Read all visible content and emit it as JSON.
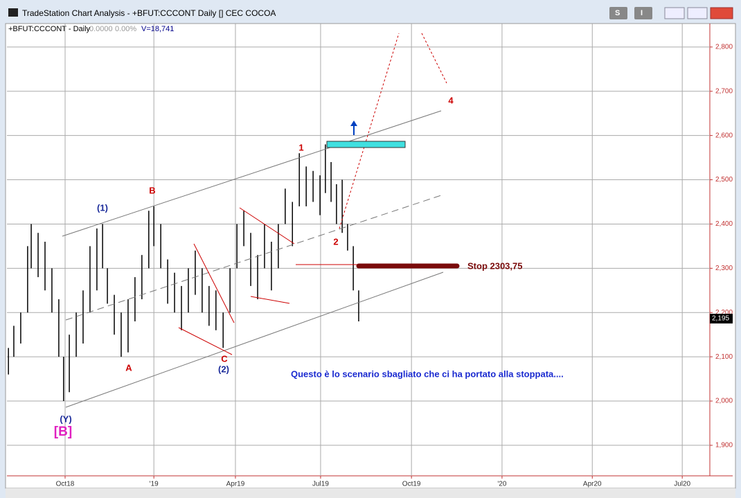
{
  "window": {
    "title": "TradeStation Chart Analysis - +BFUT:CCCONT Daily [] CEC COCOA",
    "buttons": [
      "S",
      "I"
    ]
  },
  "chart_data": {
    "type": "ohlc",
    "symbol": "+BFUT:CCCONT - Daily",
    "change": "0.0000",
    "change_pct": "0.00%",
    "volume": "V=18,741",
    "last_price_label": "2,195",
    "x": [
      -1.89,
      -1.71,
      -1.48,
      -1.25,
      -1.13,
      -0.9,
      -0.67,
      -0.44,
      -0.21,
      -0.05,
      0.14,
      0.37,
      0.6,
      0.83,
      1.06,
      1.25,
      1.41,
      1.64,
      1.87,
      2.1,
      2.33,
      2.56,
      2.79,
      2.96,
      3.19,
      3.42,
      3.65,
      3.88,
      4.11,
      4.34,
      4.57,
      4.8,
      5.03,
      5.27,
      5.5,
      5.73,
      5.96,
      6.19,
      6.42,
      6.65,
      6.88,
      7.11,
      7.34,
      7.58,
      7.81,
      8.04,
      8.27,
      8.5,
      8.68,
      8.87,
      9.05,
      9.24,
      9.42,
      9.61,
      9.79
    ],
    "high": [
      2120,
      2170,
      2200,
      2350,
      2400,
      2380,
      2360,
      2300,
      2230,
      2100,
      2150,
      2200,
      2250,
      2350,
      2390,
      2400,
      2300,
      2240,
      2200,
      2230,
      2280,
      2330,
      2430,
      2440,
      2400,
      2320,
      2290,
      2260,
      2300,
      2340,
      2300,
      2260,
      2250,
      2200,
      2300,
      2400,
      2430,
      2380,
      2330,
      2400,
      2360,
      2400,
      2480,
      2450,
      2560,
      2530,
      2520,
      2510,
      2580,
      2540,
      2490,
      2500,
      2400,
      2350,
      2250
    ],
    "low": [
      2060,
      2100,
      2130,
      2200,
      2300,
      2280,
      2250,
      2200,
      2100,
      2000,
      2020,
      2100,
      2130,
      2200,
      2250,
      2300,
      2220,
      2150,
      2100,
      2110,
      2180,
      2230,
      2300,
      2350,
      2300,
      2220,
      2200,
      2160,
      2200,
      2240,
      2200,
      2170,
      2160,
      2120,
      2200,
      2300,
      2350,
      2260,
      2230,
      2300,
      2250,
      2300,
      2400,
      2350,
      2440,
      2440,
      2450,
      2420,
      2470,
      2450,
      2400,
      2380,
      2340,
      2250,
      2180
    ],
    "color": "#000000",
    "xlim": [
      -1.94,
      21.5
    ],
    "ylim": [
      1831,
      2853
    ],
    "xticks": [
      {
        "value": 0,
        "label": "Oct18"
      },
      {
        "value": 2.96,
        "label": "'19"
      },
      {
        "value": 5.68,
        "label": "Apr19"
      },
      {
        "value": 8.52,
        "label": "Jul19"
      },
      {
        "value": 11.55,
        "label": "Oct19"
      },
      {
        "value": 14.57,
        "label": "'20"
      },
      {
        "value": 17.58,
        "label": "Apr20"
      },
      {
        "value": 20.58,
        "label": "Jul20"
      }
    ],
    "yticks": [
      {
        "value": 1900,
        "label": "1,900"
      },
      {
        "value": 2000,
        "label": "2,000"
      },
      {
        "value": 2100,
        "label": "2,100"
      },
      {
        "value": 2200,
        "label": "2,200"
      },
      {
        "value": 2300,
        "label": "2,300"
      },
      {
        "value": 2400,
        "label": "2,400"
      },
      {
        "value": 2500,
        "label": "2,500"
      },
      {
        "value": 2600,
        "label": "2,600"
      },
      {
        "value": 2700,
        "label": "2,700"
      },
      {
        "value": 2800,
        "label": "2,800"
      }
    ],
    "grid": true,
    "annotations": [
      "(1)",
      "B",
      "A",
      "C",
      "(2)",
      "1",
      "2",
      "4",
      "(Y)",
      "[B]",
      "Stop 2303,75",
      "Questo è lo scenario sbagliato che ci ha portato alla stoppata...."
    ]
  }
}
